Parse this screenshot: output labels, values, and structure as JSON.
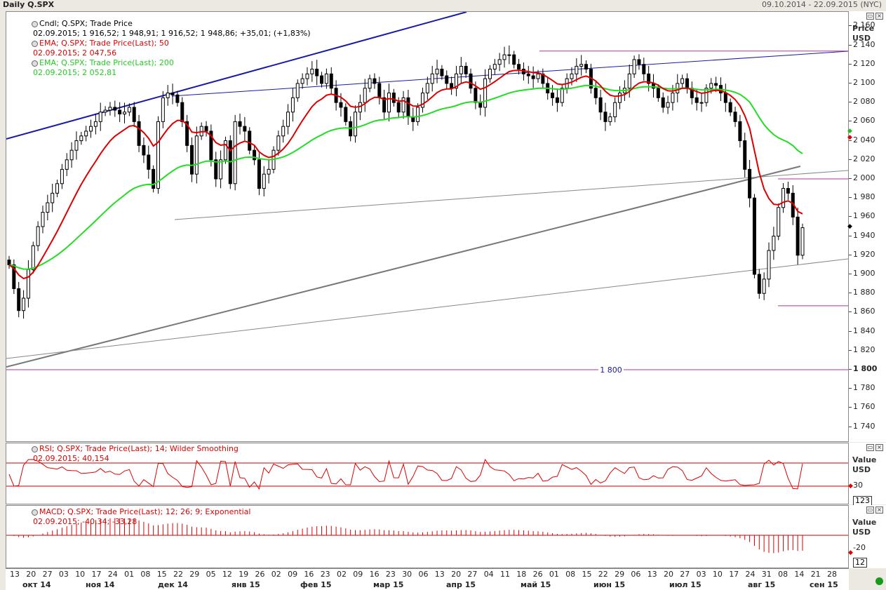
{
  "window": {
    "title": "Daily Q.SPX",
    "range": "09.10.2014 - 22.09.2015 (NYC)"
  },
  "price_axis": {
    "header": "Price",
    "unit": "USD",
    "ticks": [
      "2 160",
      "2 140",
      "2 120",
      "2 100",
      "2 080",
      "2 060",
      "2 040",
      "2 020",
      "2 000",
      "1 980",
      "1 960",
      "1 940",
      "1 920",
      "1 900",
      "1 880",
      "1 860",
      "1 840",
      "1 820",
      "1 800",
      "1 780",
      "1 760",
      "1 740"
    ]
  },
  "legend": {
    "candles": {
      "name": "Cndl; Q.SPX; Trade Price",
      "values": "02.09.2015; 1 916,52; 1 948,91; 1 916,52; 1 948,86; +35,01; (+1,83%)",
      "color": "#000000"
    },
    "ema50": {
      "name": "EMA; Q.SPX; Trade Price(Last);  50",
      "values": "02.09.2015; 2 047,56",
      "color": "#e00000"
    },
    "ema200": {
      "name": "EMA; Q.SPX; Trade Price(Last);  200",
      "values": "02.09.2015; 2 052,81",
      "color": "#22dd22"
    }
  },
  "hline_label": "1 800",
  "rsi": {
    "name": "RSI; Q.SPX; Trade Price(Last);  14; Wilder Smoothing",
    "values": "02.09.2015; 40,154",
    "header": "Value",
    "unit": "USD",
    "tick": "30",
    "box": "123"
  },
  "macd": {
    "name": "MACD; Q.SPX; Trade Price(Last);  12; 26; 9; Exponential",
    "values": "02.09.2015; -40,34; -33,28",
    "header": "Value",
    "unit": "USD",
    "tick": "-20",
    "box": "12"
  },
  "date_axis": {
    "days": [
      "13",
      "20",
      "27",
      "03",
      "10",
      "17",
      "24",
      "01",
      "08",
      "15",
      "22",
      "29",
      "05",
      "12",
      "19",
      "26",
      "02",
      "09",
      "16",
      "23",
      "02",
      "09",
      "16",
      "23",
      "30",
      "06",
      "13",
      "20",
      "27",
      "04",
      "11",
      "18",
      "26",
      "01",
      "08",
      "15",
      "22",
      "29",
      "06",
      "13",
      "20",
      "27",
      "03",
      "10",
      "17",
      "24",
      "31",
      "08",
      "14",
      "21",
      "28"
    ],
    "months": [
      "окт 14",
      "ноя 14",
      "дек 14",
      "янв 15",
      "фев 15",
      "мар 15",
      "апр 15",
      "май 15",
      "июн 15",
      "июл 15",
      "авг 15",
      "сен 15"
    ]
  },
  "chart_data": {
    "type": "candlestick",
    "title": "Daily Q.SPX",
    "ylabel": "Price USD",
    "ylim": [
      1728,
      2172
    ],
    "close_series_approx": [
      1910,
      1885,
      1862,
      1875,
      1905,
      1930,
      1950,
      1965,
      1975,
      1985,
      1995,
      2010,
      2020,
      2030,
      2040,
      2045,
      2050,
      2055,
      2060,
      2070,
      2072,
      2075,
      2072,
      2068,
      2070,
      2075,
      2060,
      2035,
      2025,
      2010,
      1990,
      2060,
      2085,
      2090,
      2088,
      2080,
      2060,
      2035,
      2005,
      2045,
      2055,
      2050,
      2020,
      2000,
      2020,
      2040,
      1995,
      2060,
      2055,
      2050,
      2030,
      2020,
      1990,
      2005,
      2010,
      2030,
      2045,
      2055,
      2070,
      2085,
      2100,
      2105,
      2110,
      2115,
      2108,
      2100,
      2110,
      2095,
      2080,
      2075,
      2060,
      2045,
      2070,
      2080,
      2095,
      2105,
      2100,
      2085,
      2070,
      2090,
      2080,
      2070,
      2085,
      2065,
      2060,
      2075,
      2090,
      2100,
      2110,
      2115,
      2108,
      2100,
      2095,
      2110,
      2118,
      2110,
      2095,
      2080,
      2075,
      2105,
      2115,
      2120,
      2125,
      2130,
      2130,
      2120,
      2115,
      2110,
      2108,
      2105,
      2110,
      2100,
      2090,
      2085,
      2080,
      2095,
      2105,
      2110,
      2118,
      2120,
      2115,
      2095,
      2085,
      2070,
      2060,
      2065,
      2080,
      2090,
      2095,
      2110,
      2125,
      2120,
      2110,
      2100,
      2095,
      2085,
      2075,
      2080,
      2090,
      2100,
      2105,
      2095,
      2085,
      2080,
      2080,
      2095,
      2100,
      2098,
      2090,
      2080,
      2070,
      2060,
      2040,
      2010,
      1980,
      1900,
      1880,
      1895,
      1925,
      1940,
      1970,
      1990,
      1985,
      1960,
      1920,
      1948.86
    ],
    "ema50": {
      "last": 2047.56
    },
    "ema200": {
      "last": 2052.81
    },
    "horizontal_levels": [
      2134,
      2000,
      1867,
      1800
    ],
    "rsi_last": 40.154,
    "macd_last": [
      -40.34,
      -33.28
    ]
  }
}
